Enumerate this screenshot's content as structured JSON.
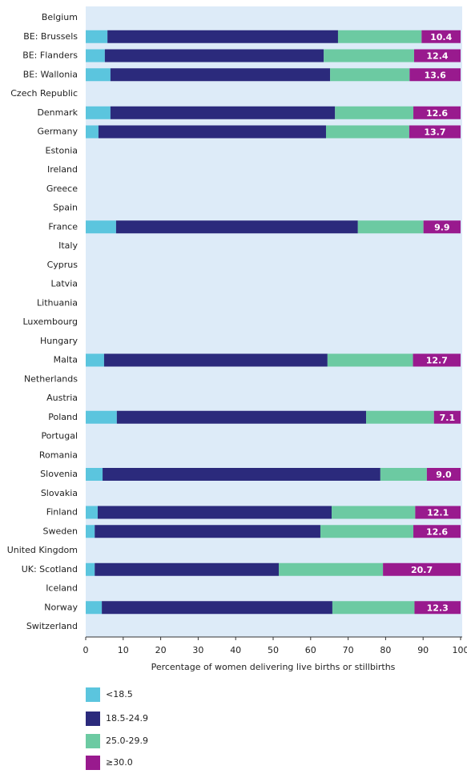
{
  "chart_data": {
    "type": "stacked-bar-horizontal",
    "categories": [
      "Belgium",
      "BE: Brussels",
      "BE: Flanders",
      "BE: Wallonia",
      "Czech Republic",
      "Denmark",
      "Germany",
      "Estonia",
      "Ireland",
      "Greece",
      "Spain",
      "France",
      "Italy",
      "Cyprus",
      "Latvia",
      "Lithuania",
      "Luxembourg",
      "Hungary",
      "Malta",
      "Netherlands",
      "Austria",
      "Poland",
      "Portugal",
      "Romania",
      "Slovenia",
      "Slovakia",
      "Finland",
      "Sweden",
      "United Kingdom",
      "UK: Scotland",
      "Iceland",
      "Norway",
      "Switzerland"
    ],
    "series": [
      {
        "name": "<18.5",
        "color": "#5bc5de",
        "values": [
          null,
          5.8,
          5.1,
          6.6,
          null,
          6.6,
          3.4,
          null,
          null,
          null,
          null,
          8.1,
          null,
          null,
          null,
          null,
          null,
          null,
          4.9,
          null,
          null,
          8.3,
          null,
          null,
          4.5,
          null,
          3.2,
          2.4,
          null,
          2.4,
          null,
          4.3,
          null
        ]
      },
      {
        "name": "18.5-24.9",
        "color": "#2b2a7c",
        "values": [
          null,
          61.5,
          58.4,
          58.6,
          null,
          59.9,
          60.7,
          null,
          null,
          null,
          null,
          64.5,
          null,
          null,
          null,
          null,
          null,
          null,
          59.6,
          null,
          null,
          66.5,
          null,
          null,
          74.1,
          null,
          62.4,
          60.2,
          null,
          49.1,
          null,
          61.5,
          null
        ]
      },
      {
        "name": "25.0-29.9",
        "color": "#6ccaa2",
        "values": [
          null,
          22.3,
          24.1,
          21.2,
          null,
          20.9,
          22.2,
          null,
          null,
          null,
          null,
          17.5,
          null,
          null,
          null,
          null,
          null,
          null,
          22.8,
          null,
          null,
          18.1,
          null,
          null,
          12.4,
          null,
          22.3,
          24.8,
          null,
          27.8,
          null,
          21.9,
          null
        ]
      },
      {
        "name": "≥30.0",
        "color": "#991a8e",
        "values": [
          null,
          10.4,
          12.4,
          13.6,
          null,
          12.6,
          13.7,
          null,
          null,
          null,
          null,
          9.9,
          null,
          null,
          null,
          null,
          null,
          null,
          12.7,
          null,
          null,
          7.1,
          null,
          null,
          9.0,
          null,
          12.1,
          12.6,
          null,
          20.7,
          null,
          12.3,
          null
        ],
        "value_labels": [
          null,
          "10.4",
          "12.4",
          "13.6",
          null,
          "12.6",
          "13.7",
          null,
          null,
          null,
          null,
          "9.9",
          null,
          null,
          null,
          null,
          null,
          null,
          "12.7",
          null,
          null,
          "7.1",
          null,
          null,
          "9.0",
          null,
          "12.1",
          "12.6",
          null,
          "20.7",
          null,
          "12.3",
          null
        ]
      }
    ],
    "x_label": "Percentage of women delivering live births or stillbirths",
    "xlim": [
      0,
      100
    ],
    "xticks": [
      0,
      10,
      20,
      30,
      40,
      50,
      60,
      70,
      80,
      90,
      100
    ]
  }
}
